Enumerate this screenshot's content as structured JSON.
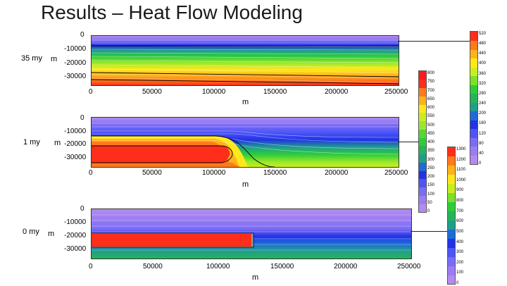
{
  "title": "Results – Heat Flow Modeling",
  "x_ticks": [
    "0",
    "50000",
    "100000",
    "150000",
    "200000",
    "250000"
  ],
  "y_ticks": [
    "0",
    "-10000",
    "-20000",
    "-30000"
  ],
  "x_axis_label": "m",
  "y_axis_label": "m",
  "panels": [
    {
      "time_label": "35 my"
    },
    {
      "time_label": "1 my"
    },
    {
      "time_label": "0 my"
    }
  ],
  "colorbars": [
    {
      "ticks": [
        "0",
        "40",
        "80",
        "120",
        "160",
        "200",
        "240",
        "280",
        "320",
        "360",
        "400",
        "440",
        "480",
        "520"
      ],
      "colors": [
        "#b38bf0",
        "#9b7df2",
        "#7b6cf5",
        "#4d55f7",
        "#2233e6",
        "#1e6bd6",
        "#1f9f8a",
        "#27b35a",
        "#2fcc3a",
        "#7de02a",
        "#c9ee1f",
        "#ffe81a",
        "#ffb31a",
        "#ff7a1a",
        "#ff2e1a"
      ]
    },
    {
      "ticks": [
        "0",
        "50",
        "100",
        "150",
        "200",
        "250",
        "300",
        "350",
        "400",
        "450",
        "500",
        "550",
        "600",
        "650",
        "700",
        "750",
        "800"
      ],
      "colors": [
        "#b38bf0",
        "#9b7df2",
        "#7b6cf5",
        "#4d55f7",
        "#2233e6",
        "#1e6bd6",
        "#1f9f8a",
        "#27b35a",
        "#2fcc3a",
        "#55d830",
        "#9be82a",
        "#c9ee1f",
        "#ffe81a",
        "#ffb31a",
        "#ff7a1a",
        "#ff2e1a",
        "#ff1a1a"
      ]
    },
    {
      "ticks": [
        "0",
        "100",
        "200",
        "300",
        "400",
        "500",
        "600",
        "700",
        "800",
        "900",
        "1000",
        "1100",
        "1200",
        "1300"
      ],
      "colors": [
        "#b38bf0",
        "#9b7df2",
        "#7b6cf5",
        "#4d55f7",
        "#2233e6",
        "#1e6bd6",
        "#1f9f8a",
        "#27b35a",
        "#2fcc3a",
        "#7de02a",
        "#c9ee1f",
        "#ffe81a",
        "#ffb31a",
        "#ff7a1a",
        "#ff2e1a"
      ]
    }
  ]
}
